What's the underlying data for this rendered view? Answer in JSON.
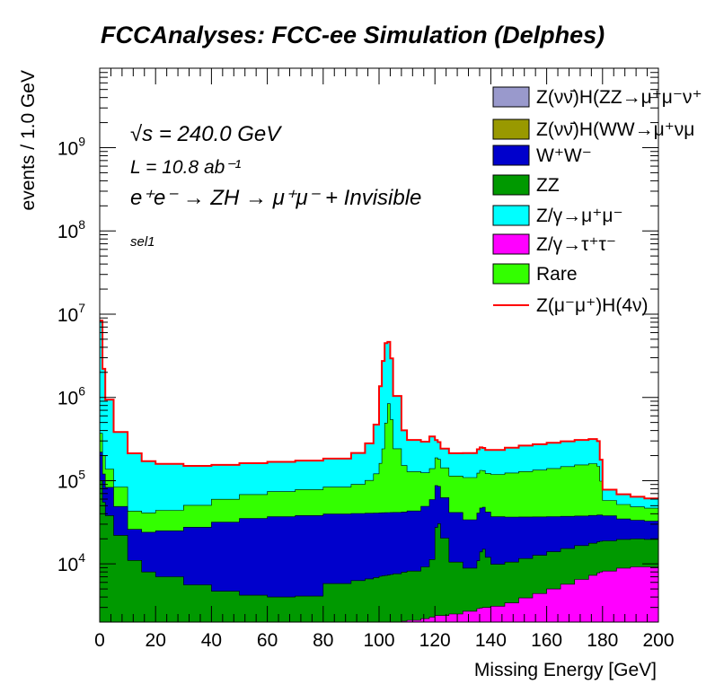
{
  "page": {
    "title": "FCCAnalyses: FCC-ee Simulation (Delphes)"
  },
  "annotations": {
    "sqrt_s": "√s = 240.0 GeV",
    "luminosity": "L = 10.8 ab⁻¹",
    "process": "e⁺e⁻ → ZH → μ⁺μ⁻ + Invisible",
    "selection": "sel1"
  },
  "chart_data": {
    "type": "area",
    "title": "FCCAnalyses: FCC-ee Simulation (Delphes)",
    "xlabel": "Missing Energy [GeV]",
    "ylabel": "events / 1.0 GeV",
    "xlim": [
      0,
      200
    ],
    "ylim": [
      2000,
      9000000000
    ],
    "yscale": "log",
    "grid": false,
    "legend_position": "top-right",
    "x_ticks": [
      0,
      20,
      40,
      60,
      80,
      100,
      120,
      140,
      160,
      180,
      200
    ],
    "y_ticks": [
      {
        "value": 10000,
        "base": "10",
        "exp": "4"
      },
      {
        "value": 100000,
        "base": "10",
        "exp": "5"
      },
      {
        "value": 1000000,
        "base": "10",
        "exp": "6"
      },
      {
        "value": 10000000,
        "base": "10",
        "exp": "7"
      },
      {
        "value": 100000000,
        "base": "10",
        "exp": "8"
      },
      {
        "value": 1000000000,
        "base": "10",
        "exp": "9"
      }
    ],
    "x": [
      0,
      1,
      2,
      5,
      10,
      15,
      20,
      30,
      40,
      50,
      60,
      70,
      80,
      90,
      95,
      98,
      100,
      101,
      102,
      103,
      104,
      105,
      108,
      110,
      115,
      118,
      120,
      121,
      122,
      125,
      130,
      135,
      136,
      137,
      138,
      140,
      145,
      150,
      155,
      160,
      165,
      170,
      175,
      178,
      179,
      180,
      185,
      190,
      195,
      200
    ],
    "legend": [
      {
        "label": "Z(νν̄)H(ZZ→μ⁺μ⁻ν⁺",
        "color": "#9999cc",
        "kind": "fill"
      },
      {
        "label": "Z(νν̄)H(WW→μ⁺νμ",
        "color": "#999900",
        "kind": "fill"
      },
      {
        "label": "W⁺W⁻",
        "color": "#0000cc",
        "kind": "fill"
      },
      {
        "label": "ZZ",
        "color": "#009900",
        "kind": "fill"
      },
      {
        "label": "Z/γ→μ⁺μ⁻",
        "color": "#00ffff",
        "kind": "fill"
      },
      {
        "label": "Z/γ→τ⁺τ⁻",
        "color": "#ff00ff",
        "kind": "fill"
      },
      {
        "label": "Rare",
        "color": "#33ff00",
        "kind": "fill"
      },
      {
        "label": "Z(μ⁻μ⁺)H(4ν)",
        "color": "#ff0000",
        "kind": "line"
      }
    ],
    "stack_order_bottom_to_top": [
      "Z/γ→τ⁺τ⁻",
      "ZZ",
      "W⁺W⁻",
      "Rare",
      "Z/γ→μ⁺μ⁻",
      "Z(νν̄)H(WW→μ⁺νμ",
      "Z(νν̄)H(ZZ→μ⁺μ⁻ν⁺"
    ],
    "series": [
      {
        "name": "Z/γ→τ⁺τ⁻",
        "color": "#ff00ff",
        "values": [
          0,
          0,
          0,
          0,
          0,
          0,
          0,
          0,
          0,
          0,
          0,
          0,
          1500,
          1700,
          1800,
          1850,
          1900,
          1900,
          1950,
          1950,
          1950,
          2000,
          2050,
          2100,
          2200,
          2300,
          2400,
          2400,
          2400,
          2500,
          2700,
          2900,
          2950,
          3000,
          3000,
          3100,
          3400,
          3900,
          4400,
          5000,
          5700,
          6500,
          7300,
          7800,
          8000,
          8200,
          8900,
          9200,
          9200,
          8700
        ]
      },
      {
        "name": "ZZ",
        "color": "#009900",
        "values": [
          100000,
          55000,
          38000,
          22000,
          11000,
          8000,
          7000,
          5600,
          4700,
          4200,
          4000,
          4100,
          4300,
          4600,
          4800,
          5000,
          5200,
          5300,
          5300,
          5400,
          5500,
          5600,
          5900,
          6100,
          7000,
          9000,
          25000,
          28000,
          18000,
          8000,
          6200,
          8000,
          11000,
          12000,
          9000,
          6800,
          7100,
          7700,
          8300,
          9000,
          9600,
          10100,
          10400,
          10600,
          10700,
          10700,
          10800,
          10800,
          10500,
          10000
        ]
      },
      {
        "name": "W⁺W⁻",
        "color": "#0000cc",
        "values": [
          120000,
          65000,
          45000,
          27000,
          15000,
          16000,
          18000,
          22000,
          27000,
          31000,
          33000,
          34000,
          34000,
          34000,
          34000,
          34000,
          34000,
          34000,
          34000,
          34000,
          34000,
          34000,
          34000,
          35000,
          40000,
          48000,
          60000,
          55000,
          42000,
          31000,
          25000,
          30000,
          33000,
          33000,
          30000,
          27000,
          26000,
          25000,
          24000,
          23000,
          22000,
          21000,
          20500,
          20300,
          20000,
          19000,
          15000,
          13500,
          13000,
          12500
        ]
      },
      {
        "name": "Rare",
        "color": "#33ff00",
        "values": [
          150000,
          80000,
          55000,
          35000,
          17000,
          17000,
          19000,
          23000,
          28000,
          33000,
          37000,
          40000,
          44000,
          50000,
          60000,
          80000,
          120000,
          200000,
          450000,
          800000,
          500000,
          200000,
          110000,
          85000,
          75000,
          80000,
          100000,
          95000,
          80000,
          72000,
          75000,
          82000,
          86000,
          84000,
          80000,
          82000,
          87000,
          92000,
          97000,
          103000,
          110000,
          117000,
          122000,
          110000,
          60000,
          20000,
          17000,
          15000,
          14000,
          13000
        ]
      },
      {
        "name": "Z/γ→μ⁺μ⁻",
        "color": "#00ffff",
        "values": [
          8000000,
          2000000,
          800000,
          300000,
          170000,
          130000,
          115000,
          100000,
          95000,
          94000,
          94000,
          96000,
          100000,
          125000,
          180000,
          350000,
          1200000,
          2500000,
          4000000,
          3800000,
          2400000,
          800000,
          250000,
          180000,
          170000,
          200000,
          120000,
          110000,
          100000,
          100000,
          105000,
          115000,
          118000,
          115000,
          112000,
          115000,
          125000,
          135000,
          140000,
          145000,
          150000,
          154000,
          156000,
          150000,
          80000,
          20000,
          17000,
          15500,
          14500,
          13500
        ]
      },
      {
        "name": "Z(νν̄)H(WW→μ⁺νμ",
        "color": "#999900",
        "values": [
          0,
          0,
          0,
          0,
          0,
          0,
          0,
          0,
          0,
          0,
          0,
          0,
          0,
          0,
          0,
          0,
          0,
          0,
          0,
          0,
          0,
          0,
          0,
          0,
          0,
          0,
          0,
          0,
          0,
          0,
          0,
          0,
          0,
          0,
          0,
          0,
          0,
          0,
          0,
          0,
          0,
          0,
          0,
          0,
          0,
          0,
          0,
          0,
          0,
          0
        ]
      },
      {
        "name": "Z(νν̄)H(ZZ→μ⁺μ⁻ν⁺",
        "color": "#9999cc",
        "values": [
          0,
          0,
          0,
          0,
          0,
          0,
          0,
          0,
          0,
          0,
          0,
          0,
          0,
          0,
          0,
          0,
          0,
          0,
          0,
          0,
          0,
          0,
          0,
          0,
          0,
          0,
          0,
          0,
          0,
          0,
          0,
          0,
          0,
          0,
          0,
          0,
          0,
          0,
          0,
          0,
          0,
          0,
          0,
          0,
          0,
          0,
          0,
          0,
          0,
          0
        ]
      },
      {
        "name": "Z(μ⁻μ⁺)H(4ν)",
        "color": "#ff0000",
        "values": [
          0,
          0,
          0,
          0,
          0,
          0,
          0,
          0,
          0,
          0,
          0,
          0,
          0,
          0,
          0,
          0,
          0,
          0,
          0,
          0,
          0,
          0,
          0,
          0,
          0,
          0,
          0,
          0,
          0,
          0,
          0,
          0,
          0,
          0,
          0,
          0,
          0,
          0,
          0,
          0,
          0,
          0,
          0,
          0,
          0,
          0,
          0,
          0,
          0,
          0
        ]
      }
    ]
  }
}
